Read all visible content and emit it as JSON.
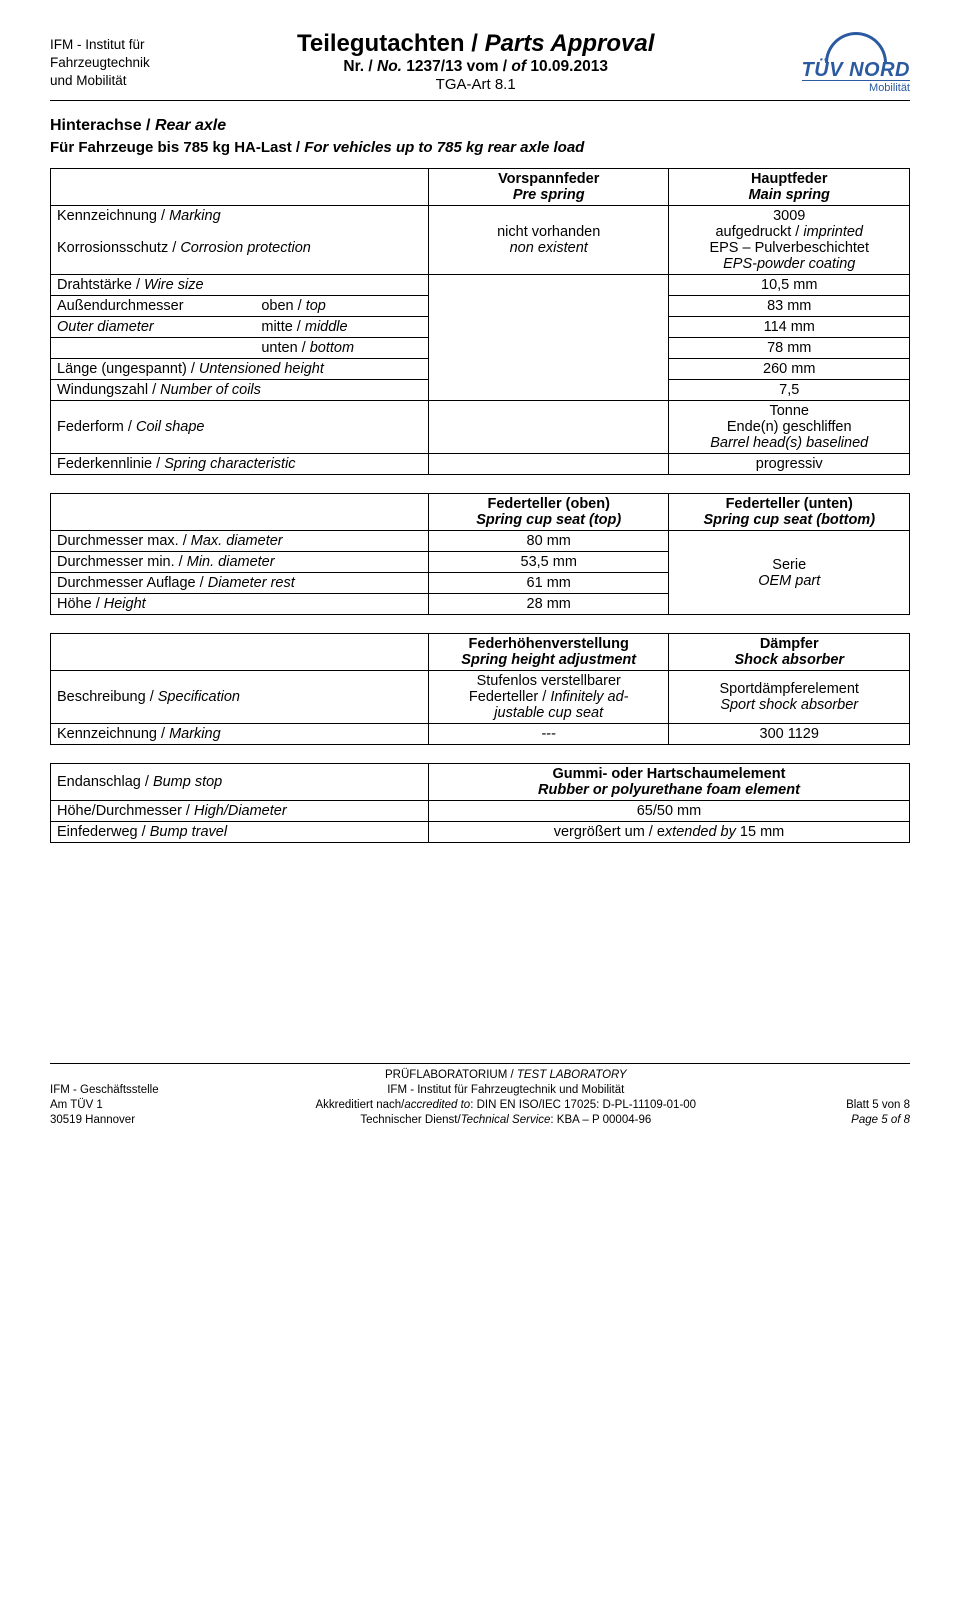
{
  "header": {
    "left1": "IFM - Institut für",
    "left2": "Fahrzeugtechnik",
    "left3": "und Mobilität",
    "title": "Teilegutachten / ",
    "title_it": "Parts Approval",
    "sub_pre": "Nr. / ",
    "sub_it": "No.",
    "sub_num": " 1237/13 vom / ",
    "sub_of_it": "of ",
    "sub_date": "10.09.2013",
    "tga": "TGA-Art 8.1",
    "tuev_text": "TÜV NORD",
    "tuev_sub": "Mobilität"
  },
  "section_title_de": "Hinterachse / ",
  "section_title_en": "Rear axle",
  "section_sub_de": "Für Fahrzeuge bis 785 kg HA-Last / ",
  "section_sub_en": "For vehicles up to 785 kg rear axle load",
  "t1": {
    "h2_de": "Vorspannfeder",
    "h2_en": "Pre spring",
    "h3_de": "Hauptfeder",
    "h3_en": "Main spring",
    "rows": {
      "marking_label": "Kennzeichnung / ",
      "marking_label_it": "Marking",
      "marking_c2a": "nicht vorhanden",
      "marking_c2b": "non existent",
      "marking_c3a": "3009",
      "marking_c3b": "aufgedruckt / ",
      "marking_c3b_it": "imprinted",
      "corr_label": "Korrosionsschutz / ",
      "corr_label_it": "Corrosion protection",
      "corr_c3a": "EPS – Pulverbeschichtet",
      "corr_c3b": "EPS-powder coating",
      "wire_label": "Drahtstärke / ",
      "wire_label_it": "Wire size",
      "wire_val": "10,5  mm",
      "od_label": "Außendurchmesser",
      "od_label2": "Outer diameter",
      "top_de": "oben / ",
      "top_it": "top",
      "top_val": "83  mm",
      "mid_de": "mitte / ",
      "mid_it": "middle",
      "mid_val": "114  mm",
      "bot_de": "unten / ",
      "bot_it": "bottom",
      "bot_val": "78  mm",
      "len_label": "Länge (ungespannt) / ",
      "len_label_it": "Untensioned height",
      "len_val": "260  mm",
      "coils_label": "Windungszahl / ",
      "coils_label_it": "Number of coils",
      "coils_val": "7,5",
      "shape_label": "Federform / ",
      "shape_label_it": "Coil shape",
      "shape_v1": "Tonne",
      "shape_v2": "Ende(n) geschliffen",
      "shape_v3": "Barrel head(s) baselined",
      "char_label": "Federkennlinie / ",
      "char_label_it": "Spring characteristic",
      "char_val": "progressiv"
    }
  },
  "t2": {
    "h2_de": "Federteller (oben)",
    "h2_en": "Spring cup seat (top)",
    "h3_de": "Federteller (unten)",
    "h3_en": "Spring cup seat (bottom)",
    "dmax_l": "Durchmesser max. / ",
    "dmax_l_it": "Max. diameter",
    "dmax_v": "80  mm",
    "dmin_l": "Durchmesser min. / ",
    "dmin_l_it": "Min. diameter",
    "dmin_v": "53,5  mm",
    "drest_l": "Durchmesser Auflage / ",
    "drest_l_it": "Diameter rest",
    "drest_v": "61  mm",
    "h_l": "Höhe / ",
    "h_l_it": "Height",
    "h_v": "28  mm",
    "serie": "Serie",
    "oem": "OEM part"
  },
  "t3": {
    "h2_de": "Federhöhenverstellung",
    "h2_en": "Spring height adjustment",
    "h3_de": "Dämpfer",
    "h3_en": "Shock absorber",
    "spec_l": "Beschreibung / ",
    "spec_l_it": "Specification",
    "spec_v2a": "Stufenlos verstellbarer",
    "spec_v2b": "Federteller / ",
    "spec_v2b_it": "Infinitely ad-",
    "spec_v2c": "justable cup seat",
    "spec_v3a": "Sportdämpferelement",
    "spec_v3b": "Sport shock absorber",
    "mark_l": "Kennzeichnung / ",
    "mark_l_it": "Marking",
    "mark_v2": "---",
    "mark_v3": "300 1129"
  },
  "t4": {
    "bump_l": "Endanschlag / ",
    "bump_l_it": "Bump stop",
    "bump_v1": "Gummi- oder Hartschaumelement",
    "bump_v2": "Rubber or polyurethane foam element",
    "hd_l": "Höhe/Durchmesser / ",
    "hd_l_it": "High/Diameter",
    "hd_v": "65/50 mm",
    "bt_l": "Einfederweg / ",
    "bt_l_it": "Bump travel",
    "bt_v_de": "vergrößert um / e",
    "bt_v_en": "xtended by ",
    "bt_v_num": "15 mm"
  },
  "footer": {
    "l1": "IFM - Geschäftsstelle",
    "l2": "Am TÜV 1",
    "l3": "30519 Hannover",
    "c1": "PRÜFLABORATORIUM / ",
    "c1_it": "TEST LABORATORY",
    "c2": "IFM - Institut für Fahrzeugtechnik und Mobilität",
    "c3": "Akkreditiert nach/",
    "c3_it": "accredited to",
    "c3b": ": DIN EN ISO/IEC 17025: D-PL-11109-01-00",
    "c4": "Technischer Dienst/",
    "c4_it": "Technical Service",
    "c4b": ": KBA – P 00004-96",
    "r1": "Blatt 5 von 8",
    "r2": "Page 5 of 8"
  }
}
